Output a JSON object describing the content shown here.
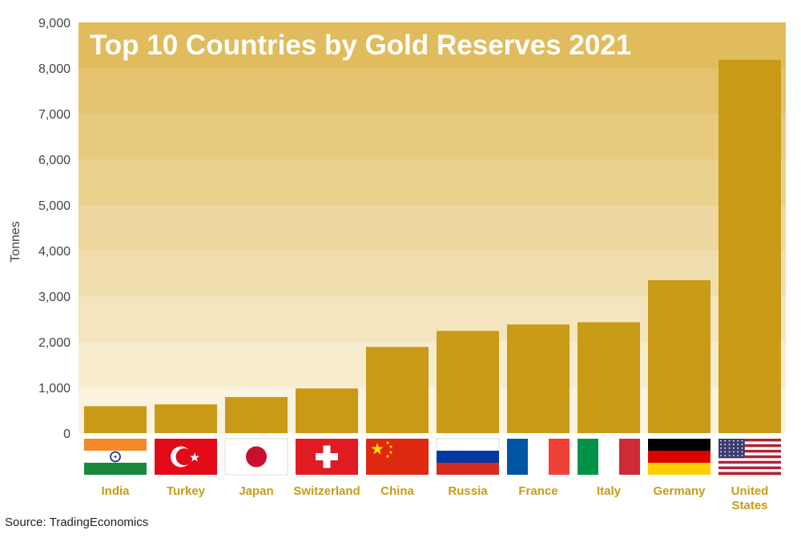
{
  "chart_data": {
    "type": "bar",
    "title": "Top 10 Countries by Gold Reserves 2021",
    "xlabel": "",
    "ylabel": "Tonnes",
    "ylim": [
      0,
      9000
    ],
    "yticks": [
      "0",
      "1,000",
      "2,000",
      "3,000",
      "4,000",
      "5,000",
      "6,000",
      "7,000",
      "8,000",
      "9,000"
    ],
    "categories": [
      {
        "lines": [
          "India"
        ]
      },
      {
        "lines": [
          "Turkey"
        ]
      },
      {
        "lines": [
          "Japan"
        ]
      },
      {
        "lines": [
          "Switzerland"
        ]
      },
      {
        "lines": [
          "China"
        ]
      },
      {
        "lines": [
          "Russia"
        ]
      },
      {
        "lines": [
          "France"
        ]
      },
      {
        "lines": [
          "Italy"
        ]
      },
      {
        "lines": [
          "Germany"
        ]
      },
      {
        "lines": [
          "United",
          "States"
        ]
      }
    ],
    "values": [
      590,
      630,
      790,
      980,
      1890,
      2240,
      2380,
      2430,
      3350,
      8180
    ],
    "flags": [
      "india-flag-icon",
      "turkey-flag-icon",
      "japan-flag-icon",
      "switzerland-flag-icon",
      "china-flag-icon",
      "russia-flag-icon",
      "france-flag-icon",
      "italy-flag-icon",
      "germany-flag-icon",
      "usa-flag-icon"
    ]
  },
  "source": "Source: TradingEconomics",
  "colors": {
    "bar": "#C99A16",
    "band_dark": "#E0BC5E",
    "band_light": "#FBF3DF",
    "label": "#C99A16",
    "title": "#FFFFFF"
  }
}
